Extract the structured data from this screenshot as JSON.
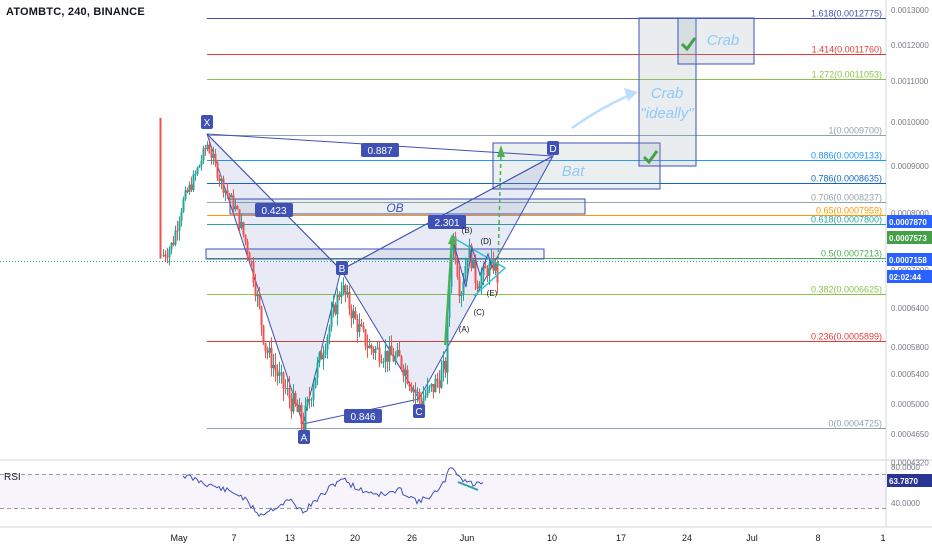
{
  "header": {
    "title": "ATOMBTC, 240, BINANCE"
  },
  "rsi": {
    "label": "RSI",
    "value": "63.7870",
    "scale": [
      "80.0000",
      "40.0000"
    ]
  },
  "chart_data": {
    "type": "candlestick",
    "symbol": "ATOMBTC",
    "interval": "240",
    "exchange": "BINANCE",
    "y_axis_ticks": [
      "0.0013000",
      "0.0012000",
      "0.0011000",
      "0.0010000",
      "0.0009000",
      "0.0008000",
      "0.0007000",
      "0.0006400",
      "0.0005800",
      "0.0005400",
      "0.0005000",
      "0.0004650",
      "0.0004320"
    ],
    "x_axis_ticks": [
      "May",
      "7",
      "13",
      "20",
      "26",
      "Jun",
      "10",
      "17",
      "24",
      "Jul",
      "8",
      "1"
    ],
    "price_badges": [
      {
        "value": "0.0007870",
        "color": "#2962ff"
      },
      {
        "value": "0.0007573",
        "color": "#43a047"
      },
      {
        "value": "0.0007158",
        "color": "#2962ff"
      },
      {
        "value": "02:02:44",
        "color": "#2962ff"
      }
    ],
    "fibonacci": [
      {
        "ratio": "1.618",
        "price": "0.0012775",
        "label": "1.618(0.0012775)",
        "color": "#3f51b5"
      },
      {
        "ratio": "1.414",
        "price": "0.0011760",
        "label": "1.414(0.0011760)",
        "color": "#e53935"
      },
      {
        "ratio": "1.272",
        "price": "0.0011053",
        "label": "1.272(0.0011053)",
        "color": "#8bc34a"
      },
      {
        "ratio": "1",
        "price": "0.0009700",
        "label": "1(0.0009700)",
        "color": "#90a4ae"
      },
      {
        "ratio": "0.886",
        "price": "0.0009133",
        "label": "0.886(0.0009133)",
        "color": "#2196f3"
      },
      {
        "ratio": "0.786",
        "price": "0.0008635",
        "label": "0.786(0.0008635)",
        "color": "#1565c0"
      },
      {
        "ratio": "0.706",
        "price": "0.0008237",
        "label": "0.706(0.0008237)",
        "color": "#90a4ae"
      },
      {
        "ratio": "0.65",
        "price": "0.0007959",
        "label": "0.65(0.0007959)",
        "color": "#ff9800"
      },
      {
        "ratio": "0.618",
        "price": "0.0007800",
        "label": "0.618(0.0007800)",
        "color": "#26a69a"
      },
      {
        "ratio": "0.5",
        "price": "0.0007213",
        "label": "0.5(0.0007213)",
        "color": "#4caf50"
      },
      {
        "ratio": "0.382",
        "price": "0.0006625",
        "label": "0.382(0.0006625)",
        "color": "#8bc34a"
      },
      {
        "ratio": "0.236",
        "price": "0.0005899",
        "label": "0.236(0.0005899)",
        "color": "#e53935"
      },
      {
        "ratio": "0",
        "price": "0.0004725",
        "label": "0(0.0004725)",
        "color": "#90a4ae"
      }
    ],
    "pattern_points": [
      "X",
      "A",
      "B",
      "C",
      "D"
    ],
    "ratios": [
      "0.887",
      "0.423",
      "2.301",
      "0.846"
    ],
    "triangle_labels": [
      "(A)",
      "(B)",
      "(C)",
      "(D)",
      "(E)"
    ],
    "zones": [
      "OB",
      "Bat",
      "Crab \"ideally\"",
      "Crab"
    ],
    "colors": {
      "bull": "#26a69a",
      "bear": "#ef5350",
      "pattern": "#3f51b5",
      "arrow": "#4caf50"
    }
  }
}
